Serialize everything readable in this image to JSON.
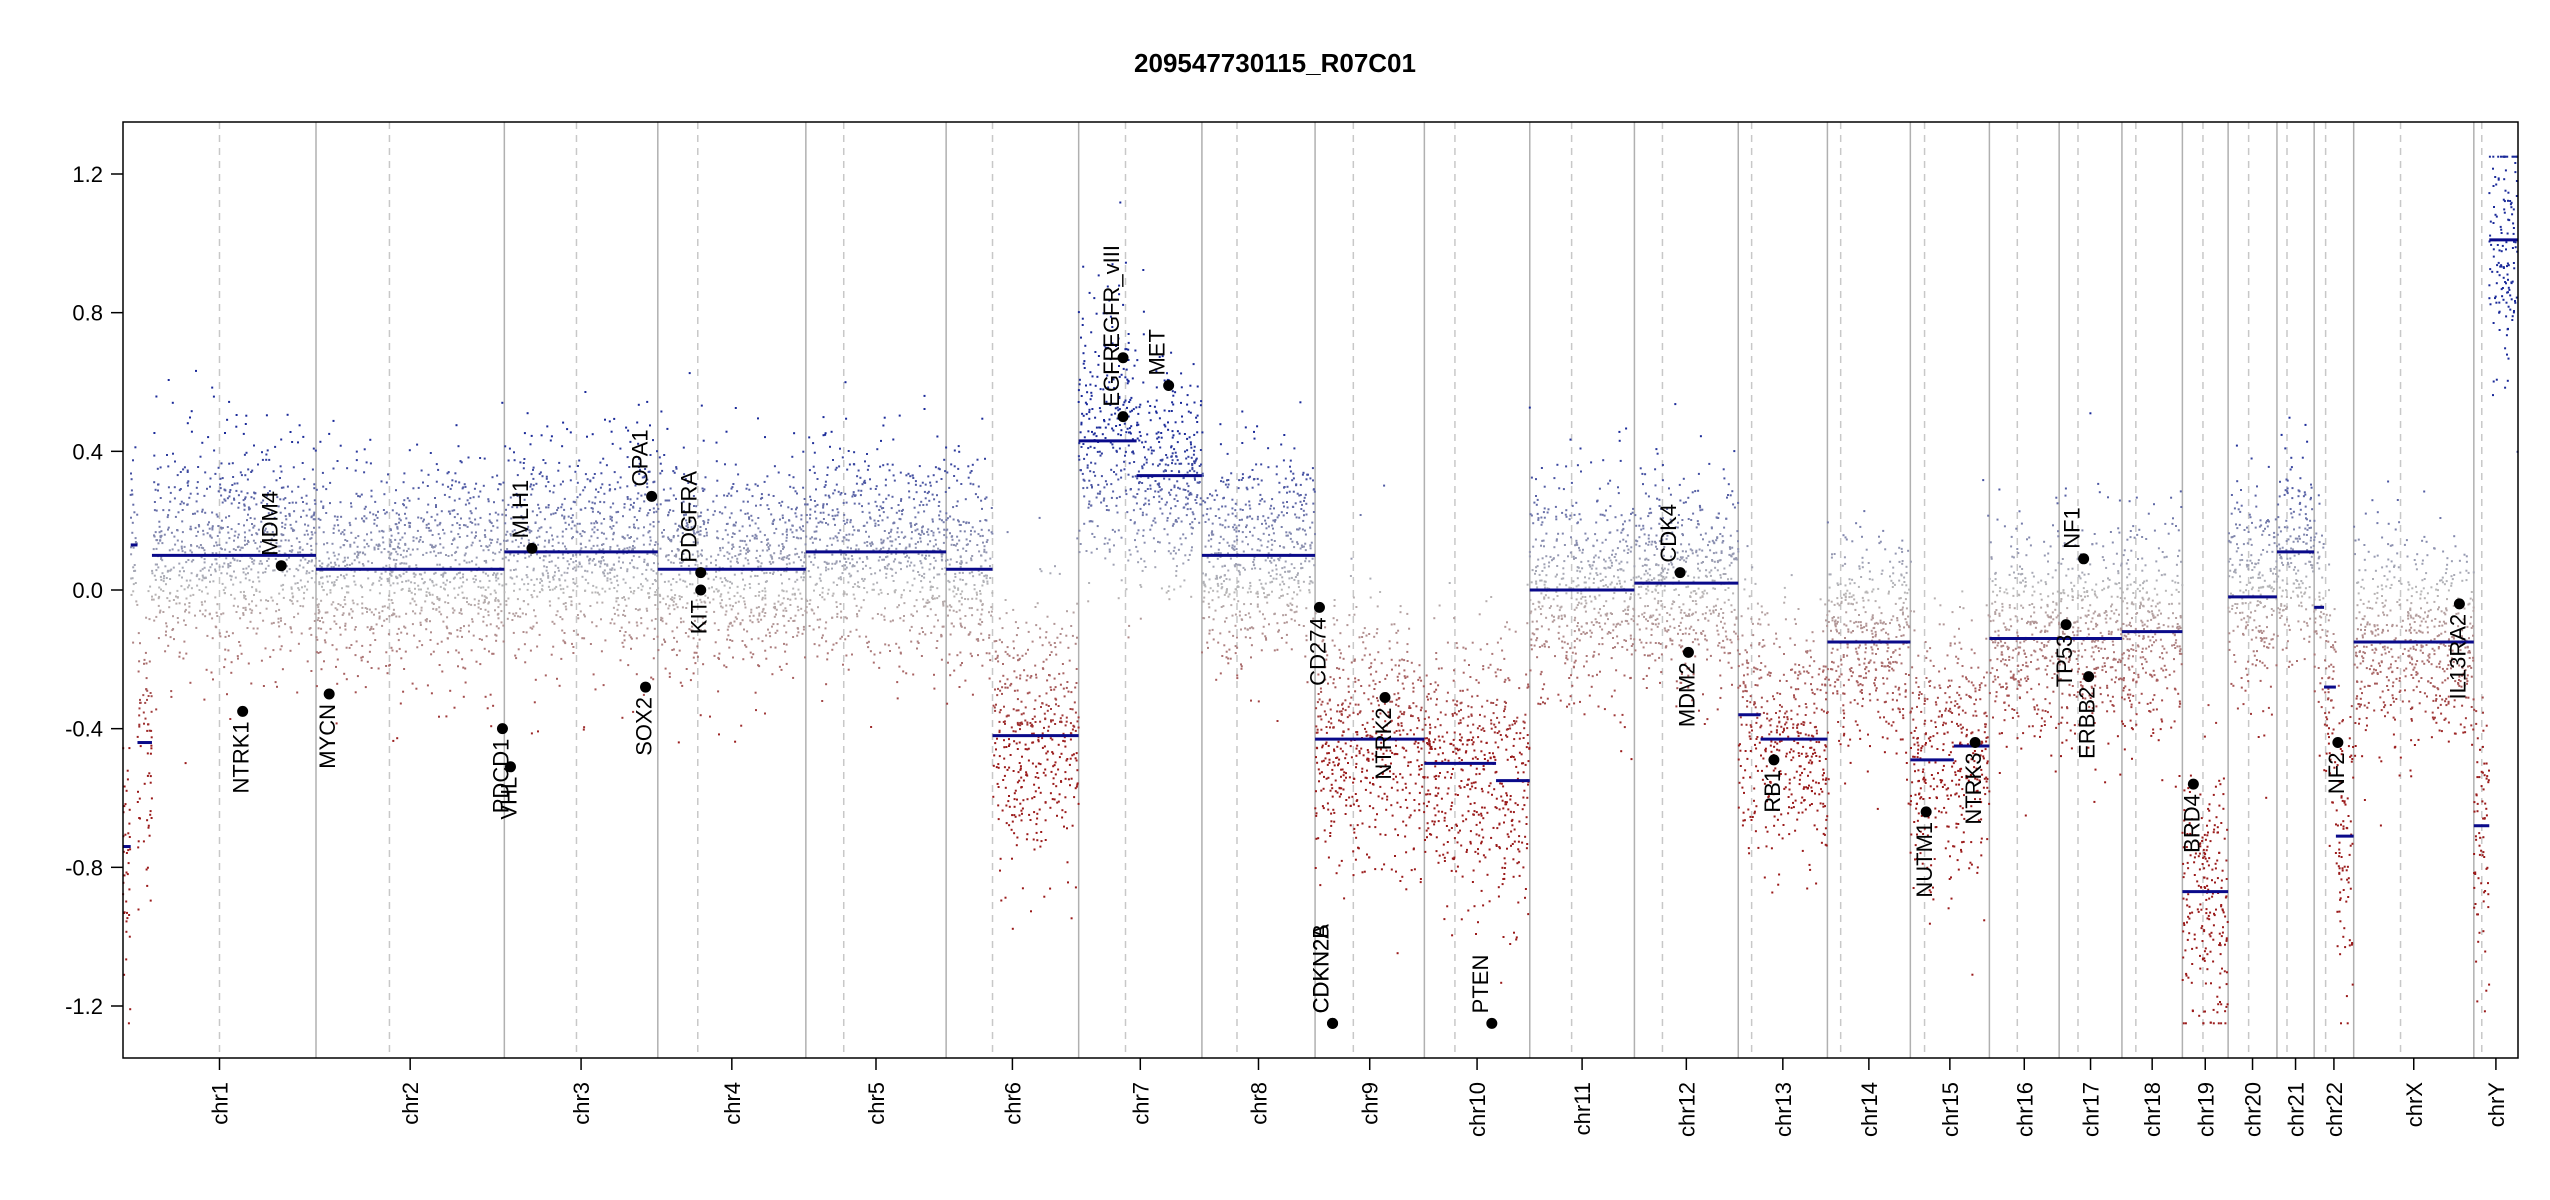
{
  "chart_data": {
    "type": "scatter",
    "title": "209547730115_R07C01",
    "xlabel": "",
    "ylabel": "",
    "ylim": [
      -1.35,
      1.35
    ],
    "y_ticks": [
      -1.2,
      -0.8,
      -0.4,
      0.0,
      0.4,
      0.8,
      1.2
    ],
    "y_tick_labels": [
      "-1.2",
      "-0.8",
      "-0.4",
      "0.0",
      "0.4",
      "0.8",
      "1.2"
    ],
    "grid": false,
    "legend": "none",
    "colors": {
      "gain": "#1a2a99",
      "neutral": "#b8b8b8",
      "loss": "#9a1a1a",
      "segment": "#0a0a8a",
      "boundary": "#b0b0b0",
      "centromere": "#c8c8c8"
    },
    "chromosomes": [
      {
        "name": "chr1",
        "length": 249,
        "centromere": 0.5,
        "segments": [
          [
            0,
            0.04,
            -0.74
          ],
          [
            0.04,
            0.075,
            0.13
          ],
          [
            0.075,
            0.15,
            -0.44
          ],
          [
            0.15,
            1.0,
            0.1
          ]
        ]
      },
      {
        "name": "chr2",
        "length": 243,
        "centromere": 0.39,
        "segments": [
          [
            0,
            1.0,
            0.06
          ]
        ]
      },
      {
        "name": "chr3",
        "length": 198,
        "centromere": 0.47,
        "segments": [
          [
            0,
            1.0,
            0.11
          ]
        ]
      },
      {
        "name": "chr4",
        "length": 191,
        "centromere": 0.27,
        "segments": [
          [
            0,
            1.0,
            0.06
          ]
        ]
      },
      {
        "name": "chr5",
        "length": 181,
        "centromere": 0.27,
        "segments": [
          [
            0,
            1.0,
            0.11
          ]
        ]
      },
      {
        "name": "chr6",
        "length": 171,
        "centromere": 0.35,
        "segments": [
          [
            0,
            0.35,
            0.06
          ],
          [
            0.35,
            1.0,
            -0.42
          ]
        ]
      },
      {
        "name": "chr7",
        "length": 159,
        "centromere": 0.38,
        "segments": [
          [
            0,
            0.47,
            0.43
          ],
          [
            0.47,
            1.0,
            0.33
          ]
        ]
      },
      {
        "name": "chr8",
        "length": 146,
        "centromere": 0.31,
        "segments": [
          [
            0,
            1.0,
            0.1
          ]
        ]
      },
      {
        "name": "chr9",
        "length": 141,
        "centromere": 0.35,
        "segments": [
          [
            0,
            1.0,
            -0.43
          ]
        ]
      },
      {
        "name": "chr10",
        "length": 136,
        "centromere": 0.29,
        "segments": [
          [
            0,
            0.68,
            -0.5
          ],
          [
            0.68,
            1.0,
            -0.55
          ]
        ]
      },
      {
        "name": "chr11",
        "length": 135,
        "centromere": 0.4,
        "segments": [
          [
            0,
            1.0,
            0.0
          ]
        ]
      },
      {
        "name": "chr12",
        "length": 134,
        "centromere": 0.27,
        "segments": [
          [
            0,
            1.0,
            0.02
          ]
        ]
      },
      {
        "name": "chr13",
        "length": 115,
        "centromere": 0.15,
        "segments": [
          [
            0,
            0.25,
            -0.36
          ],
          [
            0.25,
            1.0,
            -0.43
          ]
        ]
      },
      {
        "name": "chr14",
        "length": 107,
        "centromere": 0.16,
        "segments": [
          [
            0,
            1.0,
            -0.15
          ]
        ]
      },
      {
        "name": "chr15",
        "length": 102,
        "centromere": 0.18,
        "segments": [
          [
            0,
            0.55,
            -0.49
          ],
          [
            0.55,
            1.0,
            -0.45
          ]
        ]
      },
      {
        "name": "chr16",
        "length": 90,
        "centromere": 0.4,
        "segments": [
          [
            0,
            1.0,
            -0.14
          ]
        ]
      },
      {
        "name": "chr17",
        "length": 81,
        "centromere": 0.3,
        "segments": [
          [
            0,
            1.0,
            -0.14
          ]
        ]
      },
      {
        "name": "chr18",
        "length": 78,
        "centromere": 0.23,
        "segments": [
          [
            0,
            1.0,
            -0.12
          ]
        ]
      },
      {
        "name": "chr19",
        "length": 59,
        "centromere": 0.45,
        "segments": [
          [
            0,
            1.0,
            -0.87
          ]
        ]
      },
      {
        "name": "chr20",
        "length": 63,
        "centromere": 0.42,
        "segments": [
          [
            0,
            1.0,
            -0.02
          ]
        ]
      },
      {
        "name": "chr21",
        "length": 48,
        "centromere": 0.27,
        "segments": [
          [
            0,
            1.0,
            0.11
          ]
        ]
      },
      {
        "name": "chr22",
        "length": 51,
        "centromere": 0.29,
        "segments": [
          [
            0,
            0.25,
            -0.05
          ],
          [
            0.25,
            0.55,
            -0.28
          ],
          [
            0.55,
            1.0,
            -0.71
          ]
        ]
      },
      {
        "name": "chrX",
        "length": 155,
        "centromere": 0.39,
        "segments": [
          [
            0,
            1.0,
            -0.15
          ]
        ]
      },
      {
        "name": "chrY",
        "length": 57,
        "centromere": 0.18,
        "segments": [
          [
            0,
            0.35,
            -0.68
          ],
          [
            0.35,
            1.0,
            1.01
          ]
        ]
      }
    ],
    "genes": [
      {
        "name": "NTRK1",
        "chrom": "chr1",
        "pos": 0.62,
        "value": -0.35,
        "label_side": "below"
      },
      {
        "name": "MDM4",
        "chrom": "chr1",
        "pos": 0.82,
        "value": 0.07,
        "label_side": "above"
      },
      {
        "name": "MYCN",
        "chrom": "chr2",
        "pos": 0.07,
        "value": -0.3,
        "label_side": "below"
      },
      {
        "name": "PDCD1",
        "chrom": "chr2",
        "pos": 0.99,
        "value": -0.4,
        "label_side": "below"
      },
      {
        "name": "VHL",
        "chrom": "chr3",
        "pos": 0.04,
        "value": -0.51,
        "label_side": "below"
      },
      {
        "name": "MLH1",
        "chrom": "chr3",
        "pos": 0.18,
        "value": 0.12,
        "label_side": "above"
      },
      {
        "name": "SOX2",
        "chrom": "chr3",
        "pos": 0.92,
        "value": -0.28,
        "label_side": "below"
      },
      {
        "name": "OPA1",
        "chrom": "chr3",
        "pos": 0.96,
        "value": 0.27,
        "label_side": "above"
      },
      {
        "name": "PDGFRA",
        "chrom": "chr4",
        "pos": 0.29,
        "value": 0.05,
        "label_side": "above"
      },
      {
        "name": "KIT",
        "chrom": "chr4",
        "pos": 0.29,
        "value": 0.0,
        "label_side": "below"
      },
      {
        "name": "EGFR",
        "chrom": "chr7",
        "pos": 0.36,
        "value": 0.5,
        "label_side": "above"
      },
      {
        "name": "EGFR_vIII",
        "chrom": "chr7",
        "pos": 0.36,
        "value": 0.67,
        "label_side": "above"
      },
      {
        "name": "MET",
        "chrom": "chr7",
        "pos": 0.73,
        "value": 0.59,
        "label_side": "above"
      },
      {
        "name": "CD274",
        "chrom": "chr9",
        "pos": 0.04,
        "value": -0.05,
        "label_side": "below"
      },
      {
        "name": "CDKN2A",
        "chrom": "chr9",
        "pos": 0.16,
        "value": -1.25,
        "label_side": "above"
      },
      {
        "name": "CDKN2B",
        "chrom": "chr9",
        "pos": 0.16,
        "value": -1.25,
        "label_side": "above"
      },
      {
        "name": "NTRK2",
        "chrom": "chr9",
        "pos": 0.64,
        "value": -0.31,
        "label_side": "below"
      },
      {
        "name": "PTEN",
        "chrom": "chr10",
        "pos": 0.64,
        "value": -1.25,
        "label_side": "above"
      },
      {
        "name": "CDK4",
        "chrom": "chr12",
        "pos": 0.44,
        "value": 0.05,
        "label_side": "above"
      },
      {
        "name": "MDM2",
        "chrom": "chr12",
        "pos": 0.52,
        "value": -0.18,
        "label_side": "below"
      },
      {
        "name": "RB1",
        "chrom": "chr13",
        "pos": 0.4,
        "value": -0.49,
        "label_side": "below"
      },
      {
        "name": "NUTM1",
        "chrom": "chr15",
        "pos": 0.2,
        "value": -0.64,
        "label_side": "below"
      },
      {
        "name": "NTRK3",
        "chrom": "chr15",
        "pos": 0.82,
        "value": -0.44,
        "label_side": "below"
      },
      {
        "name": "TP53",
        "chrom": "chr17",
        "pos": 0.11,
        "value": -0.1,
        "label_side": "below"
      },
      {
        "name": "NF1",
        "chrom": "chr17",
        "pos": 0.39,
        "value": 0.09,
        "label_side": "above"
      },
      {
        "name": "ERBB2",
        "chrom": "chr17",
        "pos": 0.47,
        "value": -0.25,
        "label_side": "below"
      },
      {
        "name": "BRD4",
        "chrom": "chr19",
        "pos": 0.24,
        "value": -0.56,
        "label_side": "below"
      },
      {
        "name": "NF2",
        "chrom": "chr22",
        "pos": 0.6,
        "value": -0.44,
        "label_side": "below"
      },
      {
        "name": "IL13RA2",
        "chrom": "chrX",
        "pos": 0.88,
        "value": -0.04,
        "label_side": "below"
      }
    ]
  }
}
